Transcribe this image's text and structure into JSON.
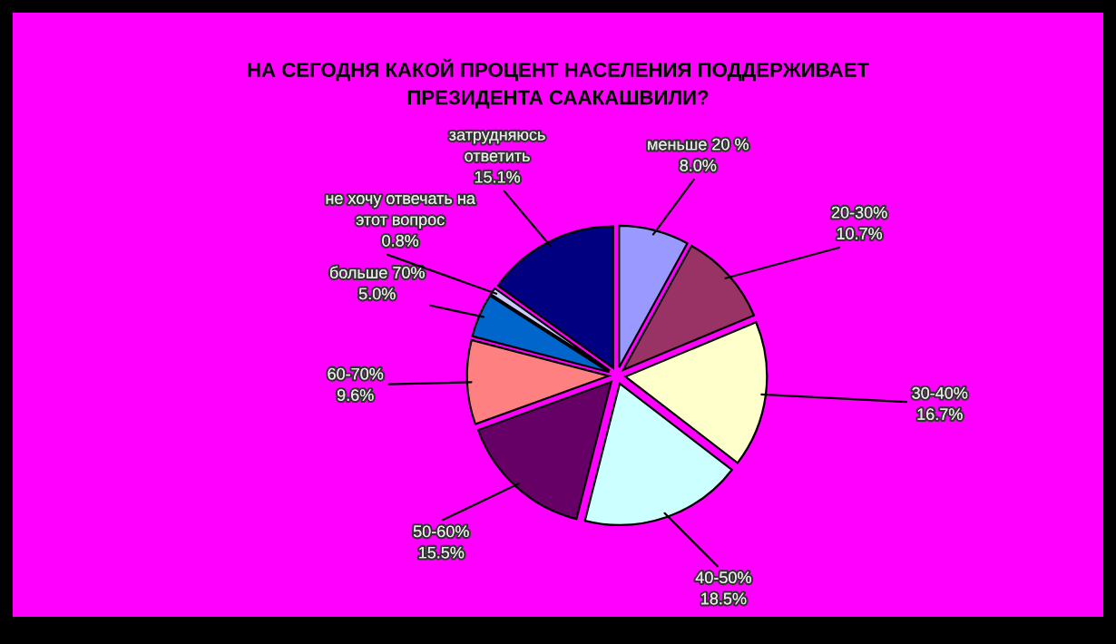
{
  "chart_data": {
    "type": "pie",
    "title": "НА СЕГОДНЯ КАКОЙ ПРОЦЕНТ НАСЕЛЕНИЯ ПОДДЕРЖИВАЕТ ПРЕЗИДЕНТА СААКАШВИЛИ?",
    "categories": [
      "меньше 20 %",
      "20-30%",
      "30-40%",
      "40-50%",
      "50-60%",
      "60-70%",
      "больше 70%",
      "не хочу отвечать на этот вопрос",
      "затрудняюсь ответить"
    ],
    "values": [
      8.0,
      10.7,
      16.7,
      18.5,
      15.5,
      9.6,
      5.0,
      0.8,
      15.1
    ],
    "colors": [
      "#9999ff",
      "#993366",
      "#ffffcc",
      "#ccffff",
      "#660066",
      "#ff8080",
      "#0066cc",
      "#ccccff",
      "#000080"
    ],
    "value_labels": [
      "8.0%",
      "10.7%",
      "16.7%",
      "18.5%",
      "15.5%",
      "9.6%",
      "5.0%",
      "0.8%",
      "15.1%"
    ]
  }
}
